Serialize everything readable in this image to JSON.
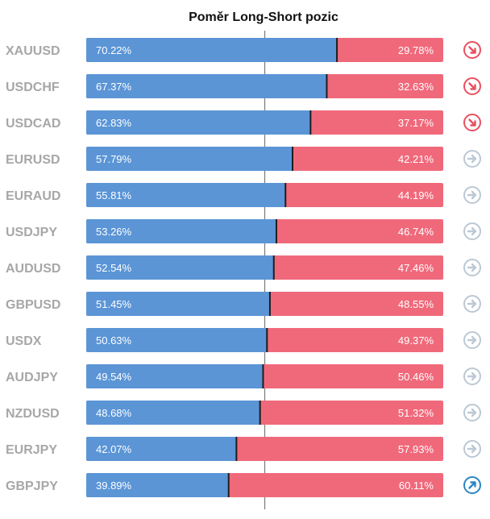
{
  "chart_data": {
    "type": "bar",
    "title": "Poměr Long-Short pozic",
    "categories": [
      "XAUUSD",
      "USDCHF",
      "USDCAD",
      "EURUSD",
      "EURAUD",
      "USDJPY",
      "AUDUSD",
      "GBPUSD",
      "USDX",
      "AUDJPY",
      "NZDUSD",
      "EURJPY",
      "GBPJPY"
    ],
    "series": [
      {
        "values": [
          70.22,
          67.37,
          62.83,
          57.79,
          55.81,
          53.26,
          52.54,
          51.45,
          50.63,
          49.54,
          48.68,
          42.07,
          39.89
        ]
      },
      {
        "values": [
          29.78,
          32.63,
          37.17,
          42.21,
          44.19,
          46.74,
          47.46,
          48.55,
          49.37,
          50.46,
          51.32,
          57.93,
          60.11
        ]
      }
    ],
    "labels_long": [
      "70.22%",
      "67.37%",
      "62.83%",
      "57.79%",
      "55.81%",
      "53.26%",
      "52.54%",
      "51.45%",
      "50.63%",
      "49.54%",
      "48.68%",
      "42.07%",
      "39.89%"
    ],
    "labels_short": [
      "29.78%",
      "32.63%",
      "37.17%",
      "42.21%",
      "44.19%",
      "46.74%",
      "47.46%",
      "48.55%",
      "49.37%",
      "50.46%",
      "51.32%",
      "57.93%",
      "60.11%"
    ],
    "signals": [
      "down",
      "down",
      "down",
      "neutral",
      "neutral",
      "neutral",
      "neutral",
      "neutral",
      "neutral",
      "neutral",
      "neutral",
      "neutral",
      "up"
    ],
    "xlim": [
      0,
      100
    ],
    "colors": {
      "long": "#5b95d6",
      "short": "#f0697b",
      "divider": "#1d1d1d",
      "midline": "#7a7a7a",
      "label_text": "#a7a7a7",
      "signal_down": "#e8505f",
      "signal_neutral": "#bcc8d4",
      "signal_up": "#2b86c6"
    }
  }
}
